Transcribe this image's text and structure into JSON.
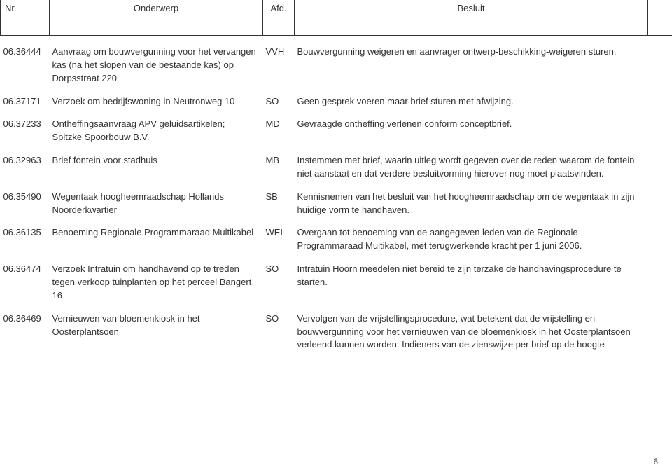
{
  "header": {
    "nr": "Nr.",
    "onderwerp": "Onderwerp",
    "afd": "Afd.",
    "besluit": "Besluit"
  },
  "rows": [
    {
      "nr": "06.36444",
      "onderwerp": "Aanvraag om bouwvergunning voor het vervangen kas (na het slopen van de bestaande kas) op Dorpsstraat 220",
      "afd": "VVH",
      "besluit": "Bouwvergunning weigeren en aanvrager ontwerp-beschikking-weigeren sturen."
    },
    {
      "nr": "06.37171",
      "onderwerp": "Verzoek om bedrijfswoning in Neutronweg 10",
      "afd": "SO",
      "besluit": "Geen gesprek voeren maar brief sturen met afwijzing."
    },
    {
      "nr": "06.37233",
      "onderwerp": "Ontheffingsaanvraag APV geluidsartikelen; Spitzke Spoorbouw B.V.",
      "afd": "MD",
      "besluit": "Gevraagde ontheffing verlenen conform conceptbrief."
    },
    {
      "nr": "06.32963",
      "onderwerp": "Brief fontein voor stadhuis",
      "afd": "MB",
      "besluit": "Instemmen met brief, waarin uitleg wordt gegeven over de reden waarom de fontein niet aanstaat en dat verdere besluitvorming hierover nog moet plaatsvinden."
    },
    {
      "nr": "06.35490",
      "onderwerp": "Wegentaak hoogheemraadschap Hollands Noorderkwartier",
      "afd": "SB",
      "besluit": "Kennisnemen van het besluit van het hoogheemraadschap om de wegentaak in zijn huidige vorm te handhaven."
    },
    {
      "nr": "06.36135",
      "onderwerp": "Benoeming Regionale Programmaraad Multikabel",
      "afd": "WEL",
      "besluit": "Overgaan tot benoeming van de aangegeven leden van de Regionale Programmaraad Multikabel, met terugwerkende kracht per 1 juni 2006."
    },
    {
      "nr": "06.36474",
      "onderwerp": "Verzoek Intratuin om handhavend op te treden tegen verkoop tuinplanten op het perceel Bangert 16",
      "afd": "SO",
      "besluit": "Intratuin Hoorn meedelen niet bereid te zijn terzake de handhavingsprocedure te starten."
    },
    {
      "nr": "06.36469",
      "onderwerp": "Vernieuwen van bloemenkiosk in het Oosterplantsoen",
      "afd": "SO",
      "besluit": "Vervolgen van de vrijstellingsprocedure, wat betekent dat de vrijstelling en bouwvergunning voor het vernieuwen van de bloemenkiosk in het Oosterplantsoen verleend kunnen worden. Indieners van de zienswijze per brief op de hoogte"
    }
  ],
  "page_number": "6"
}
